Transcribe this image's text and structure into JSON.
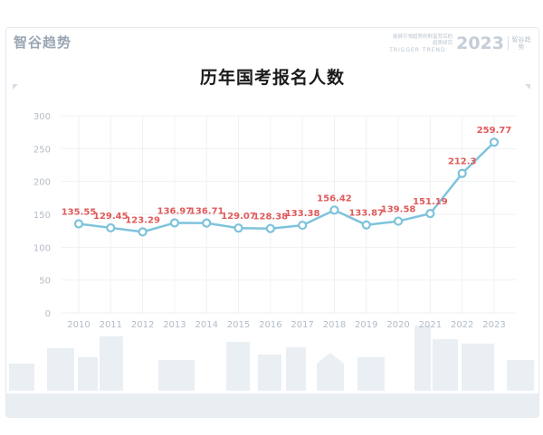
{
  "header": {
    "brand": "智谷趋势",
    "slogan": "能够引领趋势的财富背后的趋势研究",
    "trend_word": "TRIGGER TREND",
    "year_badge": "2023",
    "brand_small": "智谷趋势"
  },
  "chart_data": {
    "type": "line",
    "title": "历年国考报名人数",
    "xlabel": "",
    "ylabel": "",
    "categories": [
      "2010",
      "2011",
      "2012",
      "2013",
      "2014",
      "2015",
      "2016",
      "2017",
      "2018",
      "2019",
      "2020",
      "2021",
      "2022",
      "2023"
    ],
    "series": [
      {
        "values": [
          135.55,
          129.45,
          123.29,
          136.97,
          136.71,
          129.07,
          128.38,
          133.38,
          156.42,
          133.87,
          139.58,
          151.19,
          212.3,
          259.77
        ],
        "labels": [
          "135.55",
          "129.45",
          "123.29",
          "136.97",
          "136.71",
          "129.07",
          "128.38",
          "133.38",
          "156.42",
          "133.87",
          "139.58",
          "151.19",
          "212.3",
          "259.77"
        ]
      }
    ],
    "ylim": [
      0,
      300
    ],
    "yticks": [
      "0",
      "50",
      "100",
      "150",
      "200",
      "250",
      "300"
    ],
    "grid": true,
    "legend": "none",
    "colors": {
      "line": "#7ec3dc",
      "label": "#e05a5a",
      "axis_text": "#b3bcc6",
      "grid": "#eef1f4"
    }
  }
}
